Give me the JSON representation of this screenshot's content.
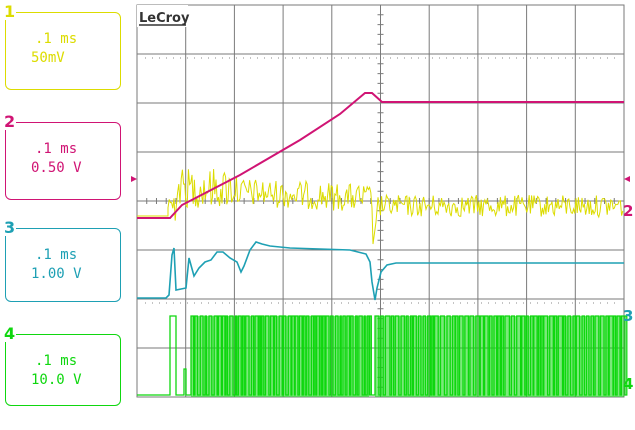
{
  "brand": "LeCroy",
  "colors": {
    "ch1": "#dcdc00",
    "ch2": "#d01474",
    "ch3": "#1ea0b4",
    "ch4": "#0fd70f",
    "grid": "#7a7a7a",
    "background": "#ffffff"
  },
  "channels": [
    {
      "number": "1",
      "timebase": ".1 ms",
      "scale": "50mV"
    },
    {
      "number": "2",
      "timebase": ".1 ms",
      "scale": "0.50 V"
    },
    {
      "number": "3",
      "timebase": ".1 ms",
      "scale": "1.00 V"
    },
    {
      "number": "4",
      "timebase": ".1 ms",
      "scale": "10.0 V"
    }
  ],
  "trace_labels": {
    "ch2": "2",
    "ch3": "3",
    "ch4": "4"
  },
  "trigger_marker": "trigger-arrow-icon",
  "grid": {
    "divisions_x": 10,
    "divisions_y": 8
  }
}
